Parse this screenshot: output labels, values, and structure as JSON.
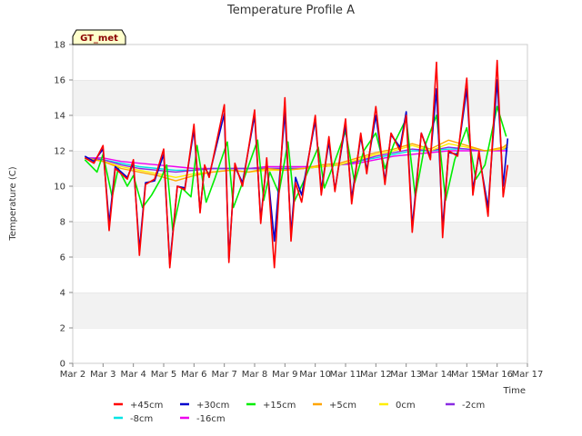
{
  "chart_data": {
    "type": "line",
    "title": "Temperature Profile A",
    "xlabel": "Time",
    "ylabel": "Temperature (C)",
    "ylim": [
      0,
      18
    ],
    "yticks": [
      0,
      2,
      4,
      6,
      8,
      10,
      12,
      14,
      16,
      18
    ],
    "xlim": [
      "Mar 2",
      "Mar 17"
    ],
    "xticks": [
      "Mar 2",
      "Mar 3",
      "Mar 4",
      "Mar 5",
      "Mar 6",
      "Mar 7",
      "Mar 8",
      "Mar 9",
      "Mar 10",
      "Mar 11",
      "Mar 12",
      "Mar 13",
      "Mar 14",
      "Mar 15",
      "Mar 16",
      "Mar 17"
    ],
    "grid": "horizontal bands",
    "legend_position": "bottom",
    "badge": "GT_met",
    "series": [
      {
        "name": "+45cm",
        "color": "#ff0000",
        "x": [
          "Mar 2.4",
          "Mar 2.7",
          "Mar 3.0",
          "Mar 3.2",
          "Mar 3.4",
          "Mar 3.8",
          "Mar 4.0",
          "Mar 4.2",
          "Mar 4.4",
          "Mar 4.7",
          "Mar 5.0",
          "Mar 5.2",
          "Mar 5.45",
          "Mar 5.7",
          "Mar 6.0",
          "Mar 6.2",
          "Mar 6.35",
          "Mar 6.5",
          "Mar 7.0",
          "Mar 7.15",
          "Mar 7.35",
          "Mar 7.6",
          "Mar 8.0",
          "Mar 8.2",
          "Mar 8.4",
          "Mar 8.65",
          "Mar 9.0",
          "Mar 9.2",
          "Mar 9.35",
          "Mar 9.55",
          "Mar 10.0",
          "Mar 10.2",
          "Mar 10.45",
          "Mar 10.65",
          "Mar 11.0",
          "Mar 11.2",
          "Mar 11.5",
          "Mar 11.7",
          "Mar 12.0",
          "Mar 12.3",
          "Mar 12.5",
          "Mar 12.8",
          "Mar 13.0",
          "Mar 13.2",
          "Mar 13.5",
          "Mar 13.8",
          "Mar 14.0",
          "Mar 14.2",
          "Mar 14.4",
          "Mar 14.7",
          "Mar 15.0",
          "Mar 15.2",
          "Mar 15.4",
          "Mar 15.7",
          "Mar 16.0",
          "Mar 16.2",
          "Mar 16.35"
        ],
        "y": [
          11.6,
          11.3,
          12.3,
          7.5,
          11.0,
          10.4,
          11.5,
          6.1,
          10.1,
          10.4,
          12.1,
          5.4,
          10.0,
          9.8,
          13.5,
          8.5,
          11.2,
          10.5,
          14.6,
          5.7,
          11.3,
          10.0,
          14.3,
          7.9,
          11.6,
          5.4,
          15.0,
          6.9,
          10.2,
          9.1,
          14.0,
          9.5,
          12.8,
          9.7,
          13.8,
          9.0,
          13.0,
          10.7,
          14.5,
          10.1,
          13.0,
          12.0,
          14.0,
          7.4,
          13.0,
          11.5,
          17.0,
          7.1,
          12.0,
          11.7,
          16.1,
          9.5,
          12.0,
          8.3,
          17.1,
          9.4,
          11.2
        ]
      },
      {
        "name": "+30cm",
        "color": "#0000cc",
        "x": [
          "Mar 2.4",
          "Mar 2.7",
          "Mar 3.0",
          "Mar 3.2",
          "Mar 3.4",
          "Mar 3.8",
          "Mar 4.0",
          "Mar 4.2",
          "Mar 4.4",
          "Mar 4.7",
          "Mar 5.0",
          "Mar 5.2",
          "Mar 5.45",
          "Mar 5.7",
          "Mar 6.0",
          "Mar 6.2",
          "Mar 6.35",
          "Mar 6.5",
          "Mar 7.0",
          "Mar 7.15",
          "Mar 7.35",
          "Mar 7.6",
          "Mar 8.0",
          "Mar 8.2",
          "Mar 8.4",
          "Mar 8.65",
          "Mar 9.0",
          "Mar 9.2",
          "Mar 9.35",
          "Mar 9.55",
          "Mar 10.0",
          "Mar 10.2",
          "Mar 10.45",
          "Mar 10.65",
          "Mar 11.0",
          "Mar 11.2",
          "Mar 11.5",
          "Mar 11.7",
          "Mar 12.0",
          "Mar 12.3",
          "Mar 12.5",
          "Mar 12.8",
          "Mar 13.0",
          "Mar 13.2",
          "Mar 13.5",
          "Mar 13.8",
          "Mar 14.0",
          "Mar 14.2",
          "Mar 14.4",
          "Mar 14.7",
          "Mar 15.0",
          "Mar 15.2",
          "Mar 15.4",
          "Mar 15.7",
          "Mar 16.0",
          "Mar 16.2",
          "Mar 16.35"
        ],
        "y": [
          11.7,
          11.4,
          12.1,
          7.9,
          11.1,
          10.5,
          11.3,
          6.4,
          10.2,
          10.3,
          11.8,
          5.6,
          10.0,
          9.9,
          13.2,
          8.6,
          11.1,
          10.6,
          14.1,
          5.9,
          11.1,
          10.2,
          14.0,
          8.1,
          11.4,
          6.9,
          14.2,
          7.3,
          10.5,
          9.5,
          13.7,
          9.8,
          12.5,
          9.8,
          13.5,
          9.3,
          12.8,
          10.9,
          14.0,
          10.3,
          12.9,
          12.2,
          14.2,
          7.7,
          13.0,
          11.6,
          15.5,
          7.6,
          11.9,
          11.8,
          15.5,
          9.8,
          11.8,
          8.8,
          16.0,
          10.0,
          12.7
        ]
      },
      {
        "name": "+15cm",
        "color": "#00ee00",
        "x": [
          "Mar 2.4",
          "Mar 2.8",
          "Mar 3.0",
          "Mar 3.3",
          "Mar 3.5",
          "Mar 3.8",
          "Mar 4.0",
          "Mar 4.3",
          "Mar 4.6",
          "Mar 4.9",
          "Mar 5.1",
          "Mar 5.3",
          "Mar 5.6",
          "Mar 5.9",
          "Mar 6.1",
          "Mar 6.4",
          "Mar 6.7",
          "Mar 7.1",
          "Mar 7.3",
          "Mar 7.6",
          "Mar 8.1",
          "Mar 8.3",
          "Mar 8.5",
          "Mar 8.8",
          "Mar 9.1",
          "Mar 9.3",
          "Mar 9.6",
          "Mar 10.1",
          "Mar 10.3",
          "Mar 10.6",
          "Mar 11.0",
          "Mar 11.3",
          "Mar 11.6",
          "Mar 12.0",
          "Mar 12.3",
          "Mar 12.6",
          "Mar 13.0",
          "Mar 13.3",
          "Mar 13.6",
          "Mar 14.0",
          "Mar 14.3",
          "Mar 14.6",
          "Mar 15.0",
          "Mar 15.3",
          "Mar 15.6",
          "Mar 16.0",
          "Mar 16.3"
        ],
        "y": [
          11.5,
          10.8,
          11.8,
          9.4,
          11.0,
          10.0,
          10.6,
          8.8,
          9.5,
          10.4,
          11.2,
          7.5,
          9.9,
          9.4,
          12.3,
          9.1,
          10.5,
          12.5,
          8.8,
          10.2,
          12.6,
          9.2,
          10.8,
          9.6,
          12.5,
          9.1,
          10.2,
          12.2,
          9.9,
          11.2,
          13.1,
          10.2,
          12.0,
          13.0,
          11.0,
          12.4,
          13.8,
          9.4,
          12.2,
          14.0,
          9.2,
          11.5,
          13.3,
          10.4,
          11.2,
          14.5,
          12.8
        ]
      },
      {
        "name": "+5cm",
        "color": "#ffa500",
        "x": [
          "Mar 2.4",
          "Mar 3.0",
          "Mar 3.6",
          "Mar 4.2",
          "Mar 4.8",
          "Mar 5.4",
          "Mar 6.0",
          "Mar 6.6",
          "Mar 7.2",
          "Mar 7.8",
          "Mar 8.4",
          "Mar 9.0",
          "Mar 9.6",
          "Mar 10.2",
          "Mar 10.8",
          "Mar 11.4",
          "Mar 12.0",
          "Mar 12.6",
          "Mar 13.2",
          "Mar 13.8",
          "Mar 14.4",
          "Mar 15.0",
          "Mar 15.6",
          "Mar 16.2",
          "Mar 16.35"
        ],
        "y": [
          11.6,
          11.4,
          11.0,
          10.8,
          10.6,
          10.3,
          10.6,
          10.8,
          10.9,
          10.8,
          11.0,
          10.9,
          11.0,
          11.2,
          11.3,
          11.6,
          11.9,
          12.1,
          12.4,
          12.1,
          12.6,
          12.3,
          12.0,
          12.2,
          12.4
        ]
      },
      {
        "name": "0cm",
        "color": "#ffee00",
        "x": [
          "Mar 2.4",
          "Mar 3.0",
          "Mar 3.6",
          "Mar 4.2",
          "Mar 4.8",
          "Mar 5.4",
          "Mar 6.0",
          "Mar 6.6",
          "Mar 7.2",
          "Mar 7.8",
          "Mar 8.4",
          "Mar 9.0",
          "Mar 9.6",
          "Mar 10.2",
          "Mar 10.8",
          "Mar 11.4",
          "Mar 12.0",
          "Mar 12.6",
          "Mar 13.2",
          "Mar 13.8",
          "Mar 14.4",
          "Mar 15.0",
          "Mar 15.6",
          "Mar 16.2",
          "Mar 16.35"
        ],
        "y": [
          11.6,
          11.4,
          11.1,
          10.9,
          10.7,
          10.5,
          10.7,
          10.8,
          10.9,
          10.8,
          10.9,
          10.9,
          11.0,
          11.1,
          11.2,
          11.5,
          11.8,
          12.0,
          12.3,
          12.0,
          12.4,
          12.2,
          12.0,
          12.1,
          12.3
        ]
      },
      {
        "name": "-2cm",
        "color": "#8a2be2",
        "x": [
          "Mar 2.4",
          "Mar 3.0",
          "Mar 3.6",
          "Mar 4.2",
          "Mar 4.8",
          "Mar 5.4",
          "Mar 6.0",
          "Mar 6.6",
          "Mar 7.2",
          "Mar 7.8",
          "Mar 8.4",
          "Mar 9.0",
          "Mar 9.6",
          "Mar 10.2",
          "Mar 10.8",
          "Mar 11.4",
          "Mar 12.0",
          "Mar 12.6",
          "Mar 13.2",
          "Mar 13.8",
          "Mar 14.4",
          "Mar 15.0",
          "Mar 15.6",
          "Mar 16.2",
          "Mar 16.35"
        ],
        "y": [
          11.6,
          11.5,
          11.2,
          11.0,
          10.9,
          10.8,
          10.9,
          11.0,
          11.0,
          11.0,
          11.0,
          11.0,
          11.0,
          11.1,
          11.2,
          11.4,
          11.7,
          11.9,
          12.1,
          12.0,
          12.2,
          12.1,
          12.0,
          12.1,
          12.2
        ]
      },
      {
        "name": "-8cm",
        "color": "#00e5e5",
        "x": [
          "Mar 2.4",
          "Mar 3.0",
          "Mar 3.6",
          "Mar 4.2",
          "Mar 4.8",
          "Mar 5.4",
          "Mar 6.0",
          "Mar 6.6",
          "Mar 7.2",
          "Mar 7.8",
          "Mar 8.4",
          "Mar 9.0",
          "Mar 9.6",
          "Mar 10.2",
          "Mar 10.8",
          "Mar 11.4",
          "Mar 12.0",
          "Mar 12.6",
          "Mar 13.2",
          "Mar 13.8",
          "Mar 14.4",
          "Mar 15.0",
          "Mar 15.6",
          "Mar 16.2",
          "Mar 16.35"
        ],
        "y": [
          11.6,
          11.5,
          11.3,
          11.1,
          11.0,
          10.9,
          10.9,
          11.0,
          11.0,
          11.0,
          11.0,
          11.0,
          11.0,
          11.1,
          11.2,
          11.4,
          11.6,
          11.8,
          12.0,
          12.0,
          12.1,
          12.1,
          12.0,
          12.1,
          12.1
        ]
      },
      {
        "name": "-16cm",
        "color": "#ee00ee",
        "x": [
          "Mar 2.4",
          "Mar 3.0",
          "Mar 3.6",
          "Mar 4.2",
          "Mar 4.8",
          "Mar 5.4",
          "Mar 6.0",
          "Mar 6.6",
          "Mar 7.2",
          "Mar 7.8",
          "Mar 8.4",
          "Mar 9.0",
          "Mar 9.6",
          "Mar 10.2",
          "Mar 10.8",
          "Mar 11.4",
          "Mar 12.0",
          "Mar 12.6",
          "Mar 13.2",
          "Mar 13.8",
          "Mar 14.4",
          "Mar 15.0",
          "Mar 15.6",
          "Mar 16.2",
          "Mar 16.35"
        ],
        "y": [
          11.6,
          11.6,
          11.4,
          11.3,
          11.2,
          11.1,
          11.0,
          11.0,
          11.0,
          11.0,
          11.1,
          11.1,
          11.1,
          11.1,
          11.2,
          11.3,
          11.5,
          11.7,
          11.8,
          11.9,
          12.0,
          12.0,
          12.0,
          12.0,
          12.0
        ]
      }
    ]
  }
}
